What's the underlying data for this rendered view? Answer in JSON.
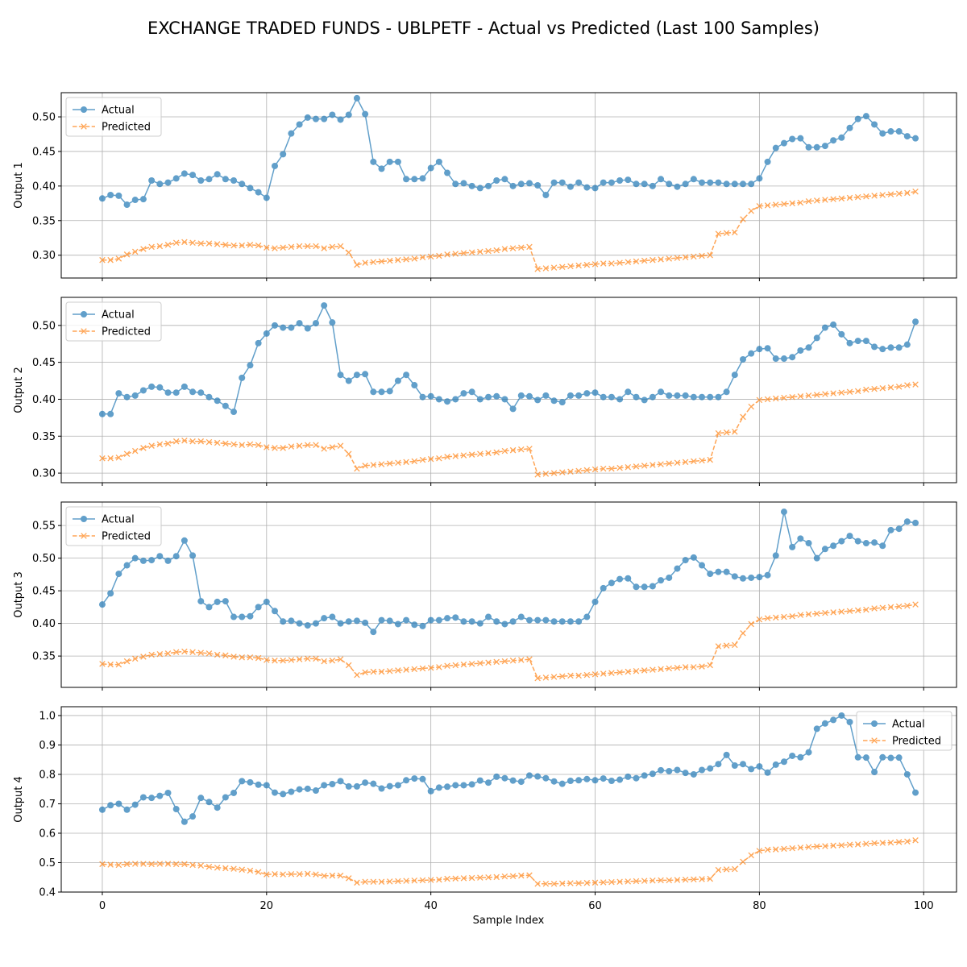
{
  "figure": {
    "title": "EXCHANGE TRADED FUNDS - UBLPETF - Actual vs Predicted (Last 100 Samples)",
    "xlabel": "Sample Index",
    "colors": {
      "actual": "#1f77b4",
      "predicted": "#ff7f0e",
      "grid": "#b0b0b0"
    }
  },
  "chart_data": [
    {
      "type": "line",
      "ylabel": "Output 1",
      "xlim": [
        -5,
        104
      ],
      "ylim": [
        0.267,
        0.535
      ],
      "yticks": [
        0.3,
        0.35,
        0.4,
        0.45,
        0.5
      ],
      "xticks": [
        0,
        20,
        40,
        60,
        80,
        100
      ],
      "grid": true,
      "legend_position": "top-left",
      "series": [
        {
          "name": "Actual",
          "marker": "circle",
          "linestyle": "solid",
          "values": [
            0.382,
            0.387,
            0.386,
            0.373,
            0.38,
            0.381,
            0.408,
            0.403,
            0.405,
            0.411,
            0.418,
            0.416,
            0.408,
            0.41,
            0.417,
            0.41,
            0.408,
            0.403,
            0.397,
            0.391,
            0.383,
            0.429,
            0.446,
            0.476,
            0.489,
            0.499,
            0.497,
            0.497,
            0.503,
            0.496,
            0.503,
            0.527,
            0.504,
            0.435,
            0.425,
            0.435,
            0.435,
            0.41,
            0.41,
            0.411,
            0.426,
            0.435,
            0.419,
            0.403,
            0.404,
            0.4,
            0.397,
            0.4,
            0.408,
            0.41,
            0.4,
            0.403,
            0.404,
            0.401,
            0.387,
            0.405,
            0.405,
            0.399,
            0.405,
            0.398,
            0.397,
            0.405,
            0.405,
            0.408,
            0.409,
            0.403,
            0.403,
            0.4,
            0.41,
            0.403,
            0.399,
            0.403,
            0.41,
            0.405,
            0.405,
            0.405,
            0.403,
            0.403,
            0.403,
            0.403,
            0.411,
            0.435,
            0.455,
            0.462,
            0.468,
            0.469,
            0.456,
            0.456,
            0.458,
            0.466,
            0.47,
            0.484,
            0.497,
            0.501,
            0.489,
            0.476,
            0.479,
            0.479,
            0.472,
            0.469
          ]
        },
        {
          "name": "Predicted",
          "marker": "x",
          "linestyle": "dashed",
          "values": [
            0.293,
            0.293,
            0.295,
            0.301,
            0.305,
            0.309,
            0.312,
            0.313,
            0.315,
            0.318,
            0.319,
            0.318,
            0.317,
            0.317,
            0.316,
            0.315,
            0.314,
            0.314,
            0.315,
            0.314,
            0.311,
            0.31,
            0.311,
            0.312,
            0.313,
            0.313,
            0.313,
            0.31,
            0.312,
            0.313,
            0.304,
            0.286,
            0.289,
            0.29,
            0.291,
            0.292,
            0.293,
            0.294,
            0.295,
            0.297,
            0.298,
            0.299,
            0.301,
            0.302,
            0.303,
            0.304,
            0.305,
            0.306,
            0.307,
            0.309,
            0.31,
            0.311,
            0.312,
            0.28,
            0.281,
            0.282,
            0.283,
            0.284,
            0.285,
            0.286,
            0.287,
            0.288,
            0.288,
            0.289,
            0.29,
            0.291,
            0.292,
            0.293,
            0.294,
            0.295,
            0.296,
            0.297,
            0.298,
            0.299,
            0.3,
            0.331,
            0.332,
            0.333,
            0.352,
            0.364,
            0.371,
            0.372,
            0.373,
            0.374,
            0.375,
            0.376,
            0.378,
            0.379,
            0.38,
            0.381,
            0.382,
            0.383,
            0.384,
            0.385,
            0.386,
            0.387,
            0.388,
            0.389,
            0.39,
            0.392
          ]
        }
      ]
    },
    {
      "type": "line",
      "ylabel": "Output 2",
      "xlim": [
        -5,
        104
      ],
      "ylim": [
        0.287,
        0.538
      ],
      "yticks": [
        0.3,
        0.35,
        0.4,
        0.45,
        0.5
      ],
      "xticks": [
        0,
        20,
        40,
        60,
        80,
        100
      ],
      "grid": true,
      "legend_position": "top-left",
      "series": [
        {
          "name": "Actual",
          "marker": "circle",
          "linestyle": "solid",
          "values": [
            0.38,
            0.38,
            0.408,
            0.403,
            0.405,
            0.412,
            0.417,
            0.416,
            0.409,
            0.409,
            0.417,
            0.41,
            0.409,
            0.403,
            0.398,
            0.391,
            0.383,
            0.429,
            0.446,
            0.476,
            0.489,
            0.5,
            0.497,
            0.497,
            0.503,
            0.496,
            0.503,
            0.527,
            0.504,
            0.433,
            0.425,
            0.433,
            0.434,
            0.41,
            0.41,
            0.411,
            0.425,
            0.433,
            0.419,
            0.403,
            0.404,
            0.4,
            0.397,
            0.4,
            0.408,
            0.41,
            0.4,
            0.403,
            0.404,
            0.4,
            0.387,
            0.405,
            0.404,
            0.399,
            0.405,
            0.398,
            0.396,
            0.405,
            0.405,
            0.408,
            0.409,
            0.403,
            0.403,
            0.4,
            0.41,
            0.403,
            0.399,
            0.403,
            0.41,
            0.405,
            0.405,
            0.405,
            0.403,
            0.403,
            0.403,
            0.403,
            0.41,
            0.433,
            0.454,
            0.462,
            0.468,
            0.469,
            0.455,
            0.455,
            0.457,
            0.466,
            0.47,
            0.483,
            0.497,
            0.501,
            0.488,
            0.476,
            0.479,
            0.479,
            0.471,
            0.468,
            0.47,
            0.47,
            0.474,
            0.505
          ]
        },
        {
          "name": "Predicted",
          "marker": "x",
          "linestyle": "dashed",
          "values": [
            0.32,
            0.32,
            0.321,
            0.326,
            0.33,
            0.334,
            0.337,
            0.339,
            0.34,
            0.343,
            0.344,
            0.343,
            0.343,
            0.342,
            0.341,
            0.34,
            0.339,
            0.338,
            0.339,
            0.338,
            0.335,
            0.334,
            0.334,
            0.336,
            0.337,
            0.338,
            0.338,
            0.333,
            0.335,
            0.337,
            0.326,
            0.306,
            0.31,
            0.311,
            0.312,
            0.313,
            0.314,
            0.315,
            0.316,
            0.318,
            0.319,
            0.32,
            0.322,
            0.323,
            0.324,
            0.325,
            0.326,
            0.327,
            0.328,
            0.33,
            0.331,
            0.332,
            0.333,
            0.298,
            0.299,
            0.3,
            0.301,
            0.302,
            0.303,
            0.304,
            0.305,
            0.306,
            0.306,
            0.307,
            0.308,
            0.309,
            0.31,
            0.311,
            0.312,
            0.313,
            0.314,
            0.315,
            0.316,
            0.317,
            0.318,
            0.354,
            0.355,
            0.356,
            0.376,
            0.39,
            0.399,
            0.4,
            0.401,
            0.402,
            0.403,
            0.404,
            0.405,
            0.406,
            0.407,
            0.408,
            0.409,
            0.41,
            0.411,
            0.413,
            0.414,
            0.415,
            0.416,
            0.417,
            0.419,
            0.42
          ]
        }
      ]
    },
    {
      "type": "line",
      "ylabel": "Output 3",
      "xlim": [
        -5,
        104
      ],
      "ylim": [
        0.302,
        0.586
      ],
      "yticks": [
        0.35,
        0.4,
        0.45,
        0.5,
        0.55
      ],
      "xticks": [
        0,
        20,
        40,
        60,
        80,
        100
      ],
      "grid": true,
      "legend_position": "top-left",
      "series": [
        {
          "name": "Actual",
          "marker": "circle",
          "linestyle": "solid",
          "values": [
            0.429,
            0.446,
            0.476,
            0.489,
            0.5,
            0.496,
            0.497,
            0.503,
            0.496,
            0.503,
            0.527,
            0.504,
            0.434,
            0.425,
            0.433,
            0.434,
            0.41,
            0.41,
            0.411,
            0.425,
            0.433,
            0.419,
            0.403,
            0.404,
            0.4,
            0.397,
            0.4,
            0.408,
            0.41,
            0.4,
            0.403,
            0.404,
            0.401,
            0.387,
            0.405,
            0.404,
            0.399,
            0.405,
            0.398,
            0.396,
            0.405,
            0.405,
            0.408,
            0.409,
            0.403,
            0.403,
            0.4,
            0.41,
            0.403,
            0.399,
            0.403,
            0.41,
            0.405,
            0.405,
            0.405,
            0.403,
            0.403,
            0.403,
            0.403,
            0.41,
            0.433,
            0.454,
            0.462,
            0.468,
            0.469,
            0.456,
            0.456,
            0.457,
            0.466,
            0.47,
            0.484,
            0.497,
            0.501,
            0.489,
            0.476,
            0.479,
            0.479,
            0.472,
            0.469,
            0.47,
            0.471,
            0.474,
            0.504,
            0.571,
            0.517,
            0.53,
            0.523,
            0.5,
            0.514,
            0.519,
            0.526,
            0.534,
            0.526,
            0.523,
            0.524,
            0.519,
            0.543,
            0.545,
            0.556,
            0.554
          ]
        },
        {
          "name": "Predicted",
          "marker": "x",
          "linestyle": "dashed",
          "values": [
            0.338,
            0.337,
            0.337,
            0.342,
            0.346,
            0.349,
            0.352,
            0.353,
            0.354,
            0.356,
            0.357,
            0.356,
            0.355,
            0.354,
            0.352,
            0.351,
            0.349,
            0.348,
            0.348,
            0.347,
            0.344,
            0.343,
            0.343,
            0.344,
            0.345,
            0.346,
            0.346,
            0.342,
            0.343,
            0.345,
            0.336,
            0.321,
            0.325,
            0.326,
            0.326,
            0.327,
            0.328,
            0.329,
            0.33,
            0.331,
            0.332,
            0.333,
            0.335,
            0.336,
            0.337,
            0.338,
            0.339,
            0.34,
            0.341,
            0.342,
            0.343,
            0.344,
            0.345,
            0.316,
            0.317,
            0.318,
            0.319,
            0.32,
            0.32,
            0.321,
            0.322,
            0.323,
            0.324,
            0.325,
            0.326,
            0.327,
            0.328,
            0.329,
            0.33,
            0.331,
            0.332,
            0.333,
            0.333,
            0.334,
            0.336,
            0.365,
            0.366,
            0.367,
            0.385,
            0.399,
            0.406,
            0.408,
            0.409,
            0.41,
            0.411,
            0.413,
            0.414,
            0.415,
            0.416,
            0.417,
            0.418,
            0.419,
            0.42,
            0.421,
            0.423,
            0.424,
            0.425,
            0.426,
            0.427,
            0.429
          ]
        }
      ]
    },
    {
      "type": "line",
      "ylabel": "Output 4",
      "xlim": [
        -5,
        104
      ],
      "ylim": [
        0.4,
        1.03
      ],
      "yticks": [
        0.4,
        0.5,
        0.6,
        0.7,
        0.8,
        0.9,
        1.0
      ],
      "xticks": [
        0,
        20,
        40,
        60,
        80,
        100
      ],
      "grid": true,
      "legend_position": "top-right",
      "series": [
        {
          "name": "Actual",
          "marker": "circle",
          "linestyle": "solid",
          "values": [
            0.68,
            0.695,
            0.7,
            0.68,
            0.697,
            0.722,
            0.72,
            0.727,
            0.737,
            0.682,
            0.639,
            0.657,
            0.72,
            0.706,
            0.687,
            0.722,
            0.737,
            0.777,
            0.773,
            0.765,
            0.763,
            0.738,
            0.733,
            0.741,
            0.749,
            0.751,
            0.745,
            0.763,
            0.767,
            0.777,
            0.759,
            0.759,
            0.772,
            0.768,
            0.752,
            0.76,
            0.763,
            0.78,
            0.786,
            0.784,
            0.743,
            0.755,
            0.758,
            0.763,
            0.763,
            0.766,
            0.779,
            0.772,
            0.792,
            0.787,
            0.779,
            0.775,
            0.796,
            0.793,
            0.787,
            0.776,
            0.768,
            0.778,
            0.78,
            0.784,
            0.78,
            0.786,
            0.778,
            0.782,
            0.792,
            0.787,
            0.796,
            0.802,
            0.814,
            0.811,
            0.815,
            0.805,
            0.8,
            0.815,
            0.82,
            0.835,
            0.866,
            0.83,
            0.835,
            0.818,
            0.827,
            0.806,
            0.833,
            0.843,
            0.863,
            0.858,
            0.875,
            0.955,
            0.973,
            0.985,
            1.0,
            0.978,
            0.858,
            0.857,
            0.808,
            0.858,
            0.856,
            0.857,
            0.8,
            0.738
          ]
        },
        {
          "name": "Predicted",
          "marker": "x",
          "linestyle": "dashed",
          "values": [
            0.495,
            0.493,
            0.492,
            0.495,
            0.496,
            0.496,
            0.495,
            0.496,
            0.496,
            0.495,
            0.495,
            0.492,
            0.49,
            0.486,
            0.483,
            0.481,
            0.479,
            0.476,
            0.473,
            0.468,
            0.46,
            0.461,
            0.46,
            0.461,
            0.461,
            0.462,
            0.46,
            0.455,
            0.456,
            0.456,
            0.447,
            0.432,
            0.435,
            0.435,
            0.435,
            0.436,
            0.437,
            0.438,
            0.439,
            0.44,
            0.441,
            0.442,
            0.445,
            0.446,
            0.447,
            0.448,
            0.449,
            0.45,
            0.451,
            0.453,
            0.454,
            0.456,
            0.457,
            0.428,
            0.428,
            0.428,
            0.429,
            0.43,
            0.43,
            0.431,
            0.432,
            0.433,
            0.434,
            0.435,
            0.436,
            0.437,
            0.438,
            0.439,
            0.44,
            0.44,
            0.441,
            0.442,
            0.443,
            0.444,
            0.445,
            0.475,
            0.477,
            0.478,
            0.503,
            0.525,
            0.54,
            0.544,
            0.545,
            0.547,
            0.549,
            0.551,
            0.553,
            0.555,
            0.556,
            0.558,
            0.559,
            0.561,
            0.562,
            0.564,
            0.566,
            0.567,
            0.568,
            0.57,
            0.572,
            0.576
          ]
        }
      ]
    }
  ]
}
